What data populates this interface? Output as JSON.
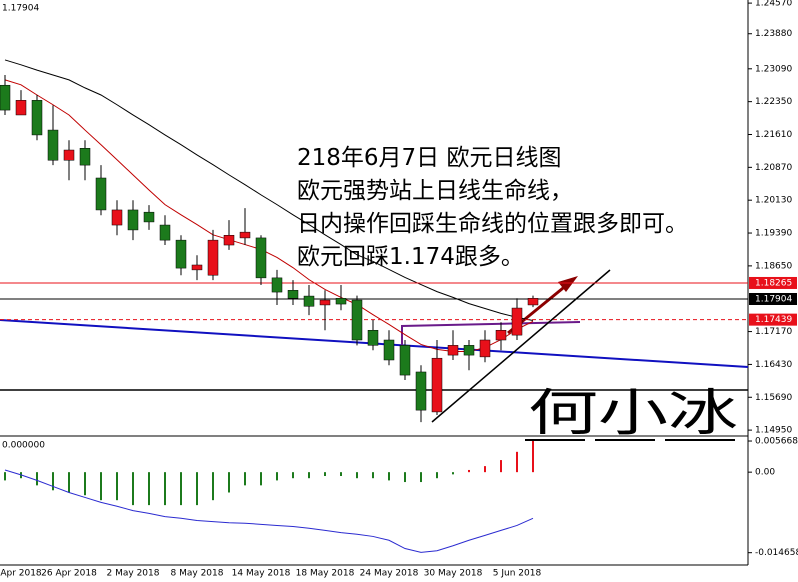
{
  "chart_data": [
    {
      "type": "candlestick",
      "price_label": "1.17904",
      "categories": [
        null,
        "Apr 2018",
        null,
        null,
        "26 Apr 2018",
        null,
        null,
        null,
        "2 May 2018",
        null,
        null,
        null,
        "8 May 2018",
        null,
        null,
        null,
        "14 May 2018",
        null,
        null,
        null,
        "18 May 2018",
        null,
        null,
        null,
        "24 May 2018",
        null,
        null,
        null,
        "30 May 2018",
        null,
        null,
        null,
        "5 Jun 2018",
        null
      ],
      "open": [
        1.2272,
        1.2205,
        1.2238,
        1.2171,
        1.2103,
        1.213,
        1.2063,
        1.1957,
        1.1991,
        1.1986,
        1.1957,
        1.1923,
        1.1856,
        1.1844,
        1.1912,
        1.1928,
        1.1928,
        1.1838,
        1.181,
        1.1797,
        1.1777,
        1.1792,
        1.1788,
        1.172,
        1.1698,
        1.1686,
        1.1626,
        1.1536,
        1.1664,
        1.1686,
        1.166,
        1.1698,
        1.1709,
        1.1777
      ],
      "high": [
        1.2295,
        1.2261,
        1.225,
        1.2227,
        1.2148,
        1.2148,
        1.2092,
        1.2013,
        1.2013,
        1.2002,
        1.1979,
        1.1934,
        1.1889,
        1.1946,
        1.1968,
        1.1995,
        1.1934,
        1.1856,
        1.1833,
        1.1822,
        1.181,
        1.1822,
        1.1798,
        1.1743,
        1.172,
        1.1698,
        1.1641,
        1.1698,
        1.172,
        1.1698,
        1.172,
        1.1738,
        1.1792,
        1.1798
      ],
      "low": [
        1.2205,
        1.2205,
        1.2148,
        1.2092,
        1.2058,
        1.2058,
        1.1979,
        1.1934,
        1.1923,
        1.1946,
        1.1912,
        1.1844,
        1.1833,
        1.1833,
        1.1901,
        1.1912,
        1.1822,
        1.1777,
        1.1777,
        1.1754,
        1.172,
        1.1765,
        1.1686,
        1.1675,
        1.1641,
        1.1608,
        1.1513,
        1.1529,
        1.1653,
        1.163,
        1.1648,
        1.1675,
        1.1698,
        1.1772
      ],
      "close": [
        1.2216,
        1.2238,
        1.216,
        1.2103,
        1.2126,
        1.2092,
        1.1991,
        1.1991,
        1.1946,
        1.1964,
        1.1923,
        1.186,
        1.1867,
        1.1923,
        1.1934,
        1.1941,
        1.1838,
        1.1806,
        1.1792,
        1.1774,
        1.1788,
        1.1779,
        1.1698,
        1.1686,
        1.1653,
        1.1619,
        1.154,
        1.1657,
        1.1686,
        1.1664,
        1.1698,
        1.172,
        1.177,
        1.1792
      ],
      "up_color": "#e8101a",
      "down_color": "#1c7a1c",
      "series": [
        {
          "color": "#c00000",
          "values": [
            1.2284,
            1.2273,
            1.225,
            1.2228,
            1.2205,
            1.2171,
            1.2138,
            1.2104,
            1.207,
            1.2036,
            1.2003,
            1.198,
            1.1958,
            1.1935,
            1.1924,
            1.1913,
            1.1902,
            1.1884,
            1.1861,
            1.1834,
            1.1812,
            1.1794,
            1.1778,
            1.1755,
            1.1733,
            1.171,
            1.1688,
            1.1677,
            1.1672,
            1.1672,
            1.1681,
            1.1699,
            1.1722,
            1.174
          ]
        },
        {
          "color": "#000000",
          "values": [
            1.2329,
            1.2318,
            1.2306,
            1.2295,
            1.2284,
            1.2266,
            1.225,
            1.2228,
            1.2205,
            1.2183,
            1.216,
            1.2138,
            1.2115,
            1.2093,
            1.207,
            1.2048,
            1.2025,
            1.2003,
            1.198,
            1.1958,
            1.1935,
            1.1913,
            1.189,
            1.1875,
            1.1857,
            1.1839,
            1.1823,
            1.1807,
            1.1794,
            1.178,
            1.1769,
            1.1758,
            1.1749,
            1.1742
          ]
        }
      ],
      "price_lines": [
        {
          "value": 1.18265,
          "label": "1.18265",
          "color": "#e8101a",
          "dashed": false
        },
        {
          "value": 1.17904,
          "label": "1.17904",
          "color": "#000000",
          "dashed": false
        },
        {
          "value": 1.17439,
          "label": "1.17439",
          "color": "#e8101a",
          "dashed": true
        }
      ],
      "ylim": [
        1.1484,
        1.2464
      ],
      "yticks": [
        {
          "value": 1.2457,
          "label": "1.24570"
        },
        {
          "value": 1.2388,
          "label": "1.23880"
        },
        {
          "value": 1.2309,
          "label": "1.23090"
        },
        {
          "value": 1.2235,
          "label": "1.22350"
        },
        {
          "value": 1.2161,
          "label": "1.21610"
        },
        {
          "value": 1.2087,
          "label": "1.20870"
        },
        {
          "value": 1.2013,
          "label": "1.20130"
        },
        {
          "value": 1.1939,
          "label": "1.19390"
        },
        {
          "value": 1.1865,
          "label": "1.18650"
        },
        {
          "value": 1.1717,
          "label": "1.17170"
        },
        {
          "value": 1.1643,
          "label": "1.16430"
        },
        {
          "value": 1.1569,
          "label": "1.15690"
        },
        {
          "value": 1.1495,
          "label": "1.14950"
        }
      ],
      "annotations": [
        "218年6月7日 欧元日线图",
        "欧元强势站上日线生命线，",
        "日内操作回踩生命线的位置跟多即可。",
        "欧元回踩1.174跟多。"
      ],
      "signature": "何小冰"
    },
    {
      "type": "histogram-indicator",
      "value_label": "0.000000",
      "values": [
        -0.0015,
        -0.0011,
        -0.0024,
        -0.0033,
        -0.0037,
        -0.0042,
        -0.0051,
        -0.0051,
        -0.006,
        -0.006,
        -0.006,
        -0.006,
        -0.006,
        -0.0051,
        -0.0037,
        -0.0024,
        -0.0024,
        -0.0015,
        -0.0011,
        -0.0011,
        -0.0007,
        -0.0007,
        -0.0011,
        -0.0011,
        -0.0015,
        -0.0018,
        -0.0018,
        -0.0011,
        -0.0004,
        0.0004,
        0.0011,
        0.0022,
        0.0037,
        0.0057
      ],
      "pos_color": "#e8101a",
      "neg_color": "#1c7a1c",
      "series": [
        {
          "color": "#2b2bd0",
          "values": [
            0.0004,
            -0.0005,
            -0.0015,
            -0.0026,
            -0.0037,
            -0.0046,
            -0.0055,
            -0.0062,
            -0.007,
            -0.0075,
            -0.0081,
            -0.0084,
            -0.0088,
            -0.009,
            -0.0092,
            -0.0093,
            -0.0095,
            -0.0097,
            -0.0099,
            -0.0102,
            -0.0106,
            -0.011,
            -0.0113,
            -0.0117,
            -0.0124,
            -0.0139,
            -0.0146,
            -0.0143,
            -0.0134,
            -0.0124,
            -0.0115,
            -0.0106,
            -0.0097,
            -0.0084
          ]
        }
      ],
      "ylim": [
        -0.0169,
        0.0064
      ],
      "yticks": [
        0.005668,
        {
          "value": 0,
          "label": "0.00"
        },
        -0.014658
      ]
    }
  ]
}
